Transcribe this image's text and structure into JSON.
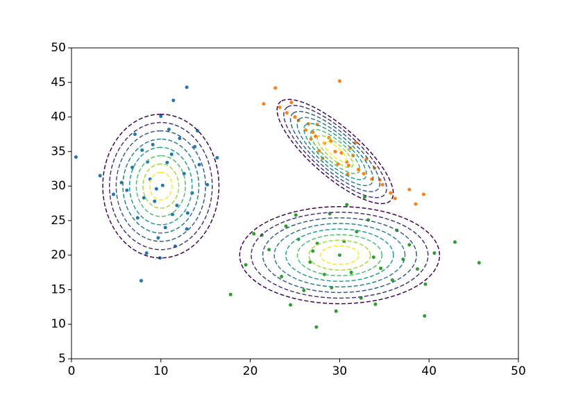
{
  "chart_data": {
    "type": "scatter",
    "xlim": [
      0,
      50
    ],
    "ylim": [
      5,
      50
    ],
    "xticks": [
      0,
      10,
      20,
      30,
      40,
      50
    ],
    "yticks": [
      5,
      10,
      15,
      20,
      25,
      30,
      35,
      40,
      45,
      50
    ],
    "contour_levels": [
      2.6,
      2.3,
      2.0,
      1.7,
      1.4,
      1.1,
      0.8,
      0.5
    ],
    "contour_colors": [
      "#440154",
      "#46327e",
      "#365c8d",
      "#277f8e",
      "#1fa187",
      "#4ac16d",
      "#a0da39",
      "#fde725"
    ],
    "series": [
      {
        "color": "#1f77b4",
        "x": [
          10.2,
          8.5,
          11.8,
          9.1,
          12.6,
          7.4,
          10.9,
          13.5,
          6.8,
          9.7,
          11.2,
          8.1,
          14.3,
          5.6,
          10.5,
          12.1,
          7.9,
          9.3,
          11.6,
          13.0,
          6.2,
          10.0,
          8.8,
          12.9,
          15.2,
          4.7,
          9.9,
          11.4,
          7.1,
          10.7,
          13.8,
          8.4,
          16.3,
          3.2,
          11.3,
          0.5,
          12.9,
          7.8,
          14.1,
          9.5
        ],
        "y": [
          30.1,
          33.5,
          27.2,
          36.0,
          31.8,
          25.4,
          38.2,
          29.0,
          32.7,
          22.5,
          34.6,
          28.3,
          33.1,
          30.5,
          24.0,
          36.9,
          35.2,
          27.8,
          21.3,
          26.1,
          29.4,
          40.1,
          31.0,
          23.8,
          30.2,
          28.8,
          19.6,
          42.4,
          37.5,
          33.4,
          35.7,
          20.3,
          34.1,
          31.5,
          25.9,
          34.2,
          44.3,
          16.3,
          38.0,
          29.6
        ],
        "contour": {
          "mean": [
            10,
            30
          ],
          "cov": [
            [
              6.25,
              0
            ],
            [
              0,
              16
            ]
          ]
        }
      },
      {
        "color": "#ff7f0e",
        "x": [
          29.5,
          27.0,
          32.1,
          25.4,
          33.6,
          28.3,
          30.8,
          26.2,
          31.5,
          34.8,
          24.1,
          29.0,
          27.7,
          31.0,
          35.7,
          23.3,
          30.2,
          28.8,
          32.7,
          26.8,
          33.0,
          21.5,
          37.8,
          30.9,
          27.5,
          36.2,
          25.0,
          31.8,
          29.8,
          38.5,
          24.6,
          28.1,
          33.9,
          26.5,
          31.2,
          39.4,
          22.8,
          30.0,
          34.5,
          27.3
        ],
        "y": [
          35.0,
          37.8,
          32.4,
          39.5,
          31.0,
          36.2,
          33.5,
          38.1,
          34.4,
          30.2,
          40.6,
          36.5,
          35.1,
          33.0,
          29.0,
          41.4,
          34.8,
          37.0,
          31.8,
          36.8,
          33.9,
          41.9,
          29.5,
          31.7,
          38.9,
          28.2,
          40.0,
          36.3,
          33.2,
          27.4,
          42.1,
          34.0,
          32.6,
          39.0,
          35.5,
          28.8,
          44.2,
          45.2,
          30.9,
          37.2
        ],
        "contour": {
          "mean": [
            29.5,
            35
          ],
          "cov": [
            [
              6.25,
              -5.8
            ],
            [
              -5.8,
              8.41
            ]
          ]
        }
      },
      {
        "color": "#2ca02c",
        "x": [
          30.0,
          25.4,
          34.6,
          22.1,
          37.8,
          28.3,
          31.9,
          26.7,
          33.2,
          19.5,
          40.6,
          29.1,
          24.0,
          35.9,
          27.5,
          32.4,
          21.3,
          38.7,
          30.8,
          26.0,
          36.4,
          23.5,
          33.8,
          28.9,
          42.9,
          17.8,
          31.3,
          25.1,
          39.6,
          29.6,
          45.6,
          20.4,
          34.0,
          27.0,
          37.1,
          24.5,
          32.8,
          39.5,
          27.4,
          30.5
        ],
        "y": [
          20.0,
          22.3,
          18.1,
          20.8,
          21.5,
          17.2,
          23.4,
          19.0,
          25.1,
          18.6,
          20.3,
          15.3,
          24.2,
          16.4,
          21.7,
          13.8,
          22.9,
          18.0,
          27.3,
          14.9,
          23.6,
          16.9,
          19.7,
          26.0,
          21.9,
          14.3,
          17.5,
          25.8,
          15.8,
          11.9,
          18.9,
          23.1,
          12.9,
          20.6,
          19.4,
          12.8,
          28.4,
          11.2,
          9.6,
          22.0
        ],
        "contour": {
          "mean": [
            30,
            20
          ],
          "cov": [
            [
              18.5,
              0
            ],
            [
              0,
              7.3
            ]
          ]
        }
      }
    ]
  }
}
